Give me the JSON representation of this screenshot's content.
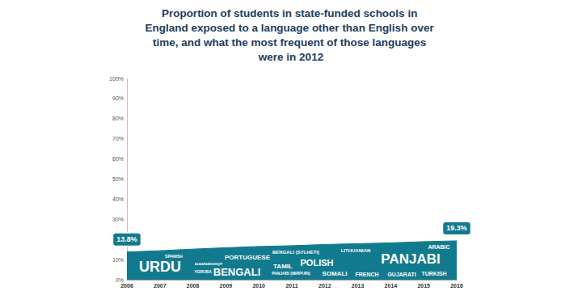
{
  "chart_data": {
    "type": "area",
    "title": "Proportion of students in state-funded schools in England exposed to a language other than English over time, and what the most frequent of those languages were in 2012",
    "categories": [
      "2006",
      "2007",
      "2008",
      "2009",
      "2010",
      "2011",
      "2012",
      "2013",
      "2014",
      "2015",
      "2016"
    ],
    "values": [
      13.8,
      14.4,
      15.2,
      15.9,
      16.5,
      16.9,
      17.5,
      17.9,
      18.3,
      18.9,
      19.3
    ],
    "value_labels": [
      "13.8%",
      null,
      null,
      null,
      null,
      null,
      null,
      null,
      null,
      null,
      "19.3%"
    ],
    "data_labels": true,
    "color": "#127a8e",
    "ylim": [
      0,
      100
    ],
    "yticks": [
      {
        "value": 0,
        "label": "0%"
      },
      {
        "value": 10,
        "label": "10%"
      },
      {
        "value": 20,
        "label": "20%"
      },
      {
        "value": 30,
        "label": "30%"
      },
      {
        "value": 40,
        "label": "40%"
      },
      {
        "value": 50,
        "label": "50%"
      },
      {
        "value": 60,
        "label": "60%"
      },
      {
        "value": 70,
        "label": "70%"
      },
      {
        "value": 80,
        "label": "80%"
      },
      {
        "value": 90,
        "label": "90%"
      },
      {
        "value": 100,
        "label": "100%"
      }
    ],
    "grid": false,
    "annotations": [
      "URDU",
      "PANJABI",
      "BENGALI",
      "POLISH",
      "PORTUGUESE",
      "SOMALI",
      "TAMIL",
      "FRENCH",
      "GUJARATI",
      "TURKISH",
      "ARABIC",
      "SPANISH",
      "YORUBA",
      "LITHUANIAN",
      "BENGALI (SYLHETI)",
      "PANJABI (MIRPURI)",
      "ALBANIAN/SHQIP"
    ]
  }
}
